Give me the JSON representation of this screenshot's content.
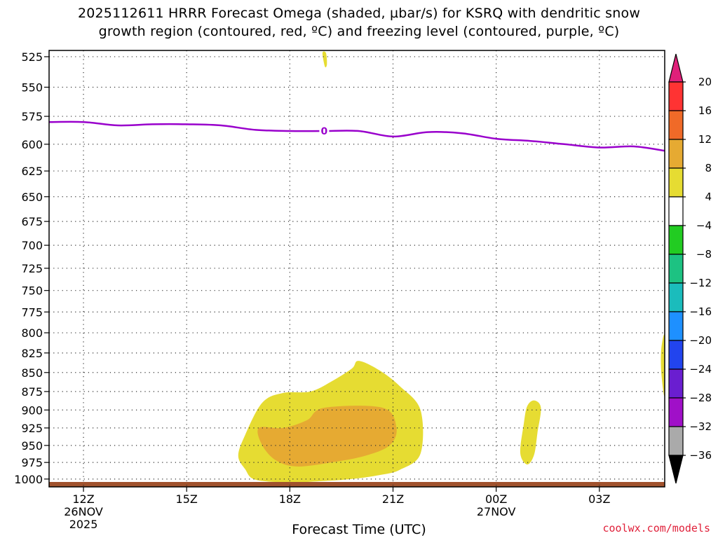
{
  "title": {
    "line1": "2025112611 HRRR Forecast Omega (shaded, µbar/s) for KSRQ with dendritic snow",
    "line2": "growth region (contoured, red, ºC) and freezing level (contoured, purple, ºC)"
  },
  "credit": "coolwx.com/models",
  "chart_data": {
    "type": "area",
    "title": "2025112611 HRRR Forecast Omega (shaded, µbar/s) for KSRQ with dendritic snow growth region (contoured, red, ºC) and freezing level (contoured, purple, ºC)",
    "xlabel": "Forecast Time (UTC)",
    "ylabel": "",
    "x_ticks": [
      {
        "label": "12Z",
        "sub": [
          "26NOV",
          "2025"
        ]
      },
      {
        "label": "15Z",
        "sub": []
      },
      {
        "label": "18Z",
        "sub": []
      },
      {
        "label": "21Z",
        "sub": []
      },
      {
        "label": "00Z",
        "sub": [
          "27NOV"
        ]
      },
      {
        "label": "03Z",
        "sub": []
      }
    ],
    "x_hours": [
      12,
      15,
      18,
      21,
      24,
      27
    ],
    "xlim": [
      11,
      28.9
    ],
    "y_ticks": [
      525,
      550,
      575,
      600,
      625,
      650,
      675,
      700,
      725,
      750,
      775,
      800,
      825,
      850,
      875,
      900,
      925,
      950,
      975,
      1000
    ],
    "ylim": [
      520,
      1012
    ],
    "y_scale": "log-pressure",
    "grid": true,
    "freezing_level": {
      "label": "0",
      "color": "#9900cc",
      "hours": [
        11,
        12,
        13,
        14,
        15,
        16,
        17,
        18,
        19,
        20,
        21,
        22,
        23,
        24,
        25,
        26,
        27,
        28,
        28.9
      ],
      "pressure": [
        580,
        580,
        583,
        582,
        582,
        583,
        587,
        588,
        588,
        588,
        593,
        589,
        590,
        595,
        597,
        600,
        603,
        602,
        606
      ]
    },
    "omega_regions": [
      {
        "level": "4 to 8",
        "color": "#e6dc32",
        "points": [
          [
            16.5,
            965
          ],
          [
            16.7,
            935
          ],
          [
            17.2,
            890
          ],
          [
            17.8,
            877
          ],
          [
            18.6,
            875
          ],
          [
            19.2,
            862
          ],
          [
            19.8,
            845
          ],
          [
            20.0,
            835
          ],
          [
            20.6,
            847
          ],
          [
            21.2,
            868
          ],
          [
            21.8,
            900
          ],
          [
            21.8,
            962
          ],
          [
            21.2,
            986
          ],
          [
            20.6,
            994
          ],
          [
            19.8,
            1000
          ],
          [
            19.0,
            1003
          ],
          [
            18.0,
            1005
          ],
          [
            17.0,
            1001
          ],
          [
            16.7,
            985
          ]
        ]
      },
      {
        "level": "8 to 12",
        "color": "#e6aa32",
        "points": [
          [
            17.1,
            925
          ],
          [
            17.8,
            925
          ],
          [
            18.5,
            914
          ],
          [
            19.0,
            897
          ],
          [
            20.7,
            897
          ],
          [
            21.1,
            925
          ],
          [
            20.9,
            950
          ],
          [
            20.2,
            965
          ],
          [
            19.2,
            975
          ],
          [
            18.2,
            981
          ],
          [
            17.6,
            972
          ],
          [
            17.2,
            950
          ]
        ]
      },
      {
        "level": "4 to 8",
        "color": "#e6dc32",
        "points": [
          [
            24.7,
            961
          ],
          [
            24.8,
            920
          ],
          [
            24.9,
            895
          ],
          [
            25.1,
            887
          ],
          [
            25.3,
            897
          ],
          [
            25.2,
            932
          ],
          [
            25.1,
            964
          ],
          [
            24.9,
            978
          ]
        ]
      },
      {
        "level": "4 to 8",
        "color": "#e6dc32",
        "points": [
          [
            28.9,
            805
          ],
          [
            28.8,
            820
          ],
          [
            28.8,
            850
          ],
          [
            28.9,
            880
          ]
        ]
      },
      {
        "level": "4 to 8",
        "color": "#e6dc32",
        "points": [
          [
            18.95,
            522
          ],
          [
            19.05,
            522
          ],
          [
            19.08,
            531
          ],
          [
            19.02,
            533
          ]
        ]
      }
    ],
    "ground_color": "#a0522d",
    "colorbar": {
      "labels": [
        "20",
        "16",
        "12",
        "8",
        "4",
        "−4",
        "−8",
        "−12",
        "−16",
        "−20",
        "−24",
        "−28",
        "−32",
        "−36"
      ],
      "colors": [
        "#ff3333",
        "#f06a28",
        "#e6aa32",
        "#e6dc32",
        "#ffffff",
        "#22cc22",
        "#1dc282",
        "#1bbcbc",
        "#1e90ff",
        "#2244ee",
        "#6a1ed0",
        "#a010c8",
        "#aaaaaa"
      ],
      "top_arrow_color": "#e0207a",
      "bottom_arrow_color": "#000000"
    }
  }
}
